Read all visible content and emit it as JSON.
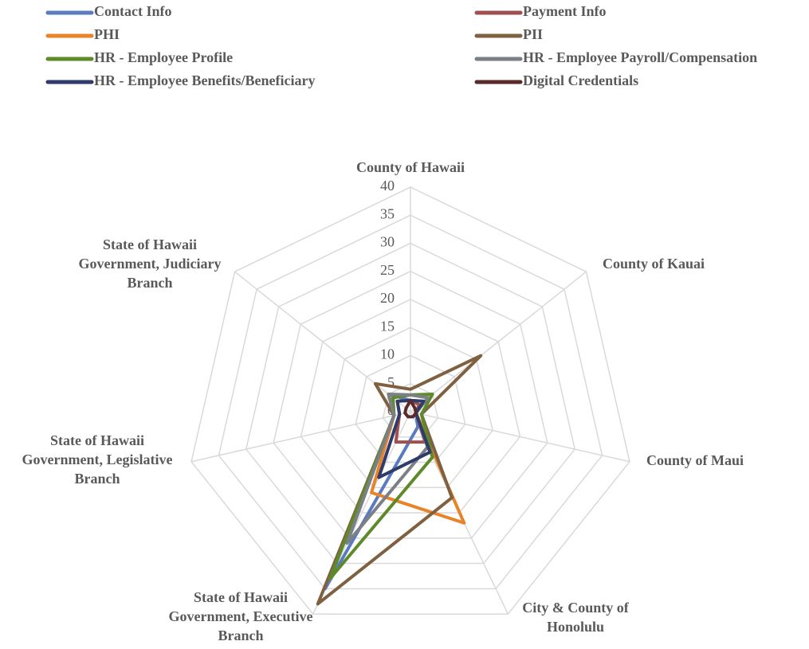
{
  "chart_data": {
    "type": "radar",
    "categories": [
      "County of Hawaii",
      "County of Kauai",
      "County of Maui",
      "City & County of\nHonolulu",
      "State of Hawaii\nGovernment, Executive\nBranch",
      "State of Hawaii\nGovernment, Legislative\nBranch",
      "State of Hawaii\nGovernment, Judiciary\nBranch"
    ],
    "series": [
      {
        "name": "Contact Info",
        "color": "#5b7bc0",
        "values": [
          2,
          3,
          1,
          3,
          35,
          3,
          5
        ]
      },
      {
        "name": "Payment Info",
        "color": "#a04f50",
        "values": [
          2,
          2,
          1,
          6,
          6,
          2,
          3
        ]
      },
      {
        "name": "PHI",
        "color": "#e8832a",
        "values": [
          3,
          4,
          1,
          22,
          16,
          3,
          4
        ]
      },
      {
        "name": "PII",
        "color": "#7f6040",
        "values": [
          4,
          16,
          2,
          17,
          38,
          3,
          8
        ]
      },
      {
        "name": "HR - Employee Profile",
        "color": "#5e8a2a",
        "values": [
          3,
          5,
          2,
          9,
          33,
          3,
          4
        ]
      },
      {
        "name": "HR -  Employee Payroll/Compensation",
        "color": "#7a8085",
        "values": [
          3,
          4,
          1,
          7,
          26,
          3,
          5
        ]
      },
      {
        "name": "HR -  Employee Benefits/Beneficiary",
        "color": "#2e3b6b",
        "values": [
          2,
          3,
          1,
          8,
          13,
          2,
          3
        ]
      },
      {
        "name": "Digital Credentials",
        "color": "#5a2a2a",
        "values": [
          2,
          1,
          1,
          1,
          1,
          1,
          1
        ]
      }
    ],
    "ylim": [
      0,
      40
    ],
    "yticks": [
      0,
      5,
      10,
      15,
      20,
      25,
      30,
      35,
      40
    ],
    "grid": true,
    "legend": "top"
  }
}
